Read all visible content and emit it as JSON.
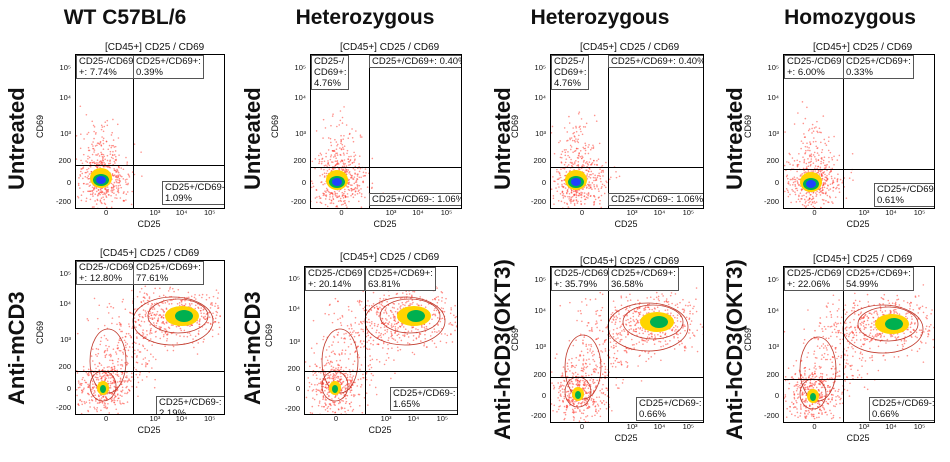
{
  "columns": [
    "WT C57BL/6",
    "Heterozygous",
    "Heterozygous",
    "Homozygous"
  ],
  "row_labels": {
    "top": [
      "Untreated",
      "Untreated",
      "Untreated",
      "Untreated"
    ],
    "bottom": [
      "Anti-mCD3",
      "Anti-mCD3",
      "Anti-hCD3(OKT3)",
      "Anti-hCD3(OKT3)"
    ]
  },
  "colors": {
    "low": "#ff3b30",
    "mid": "#ffd400",
    "high": "#00b050",
    "core": "#1e40ff",
    "contour": "#c0392b"
  },
  "chart_data": [
    {
      "type": "scatter",
      "title": "[CD45+] CD25 / CD69",
      "xlabel": "CD25",
      "ylabel": "CD69",
      "x_ticks": [
        "0",
        "10³",
        "10⁴",
        "10⁵"
      ],
      "y_ticks": [
        "10⁵",
        "10⁴",
        "10³",
        "200",
        "0",
        "-200"
      ],
      "quadrants": {
        "ul": "CD25-/CD69\n+: 7.74%",
        "ur": "CD25+/CD69+:\n0.39%",
        "lr": "CD25+/CD69-:\n1.09%"
      },
      "quadrant_values": {
        "ul": 7.74,
        "ur": 0.39,
        "lr": 1.09
      },
      "population": "untreated"
    },
    {
      "type": "scatter",
      "title": "[CD45+] CD25 / CD69",
      "xlabel": "CD25",
      "ylabel": "CD69",
      "x_ticks": [
        "0",
        "10³",
        "10⁴",
        "10⁵"
      ],
      "y_ticks": [
        "10⁵",
        "10⁴",
        "10³",
        "200",
        "0",
        "-200"
      ],
      "quadrants": {
        "ul": "CD25-/\nCD69+:\n4.76%",
        "ur": "CD25+/CD69+: 0.40%",
        "lr": "CD25+/CD69-: 1.06%"
      },
      "quadrant_values": {
        "ul": 4.76,
        "ur": 0.4,
        "lr": 1.06
      },
      "population": "untreated"
    },
    {
      "type": "scatter",
      "title": "[CD45+] CD25 / CD69",
      "xlabel": "CD25",
      "ylabel": "CD69",
      "x_ticks": [
        "0",
        "10³",
        "10⁴",
        "10⁵"
      ],
      "y_ticks": [
        "10⁵",
        "10⁴",
        "10³",
        "200",
        "0",
        "-200"
      ],
      "quadrants": {
        "ul": "CD25-/\nCD69+:\n4.76%",
        "ur": "CD25+/CD69+: 0.40%",
        "lr": "CD25+/CD69-: 1.06%"
      },
      "quadrant_values": {
        "ul": 4.76,
        "ur": 0.4,
        "lr": 1.06
      },
      "population": "untreated"
    },
    {
      "type": "scatter",
      "title": "[CD45+] CD25 / CD69",
      "xlabel": "CD25",
      "ylabel": "CD69",
      "x_ticks": [
        "0",
        "10³",
        "10⁴",
        "10⁵"
      ],
      "y_ticks": [
        "10⁵",
        "10⁴",
        "10³",
        "200",
        "0",
        "-200"
      ],
      "quadrants": {
        "ul": "CD25-/CD69\n+: 6.00%",
        "ur": "CD25+/CD69+:\n0.33%",
        "lr": "CD25+/CD69-:\n0.61%"
      },
      "quadrant_values": {
        "ul": 6.0,
        "ur": 0.33,
        "lr": 0.61
      },
      "population": "untreated"
    },
    {
      "type": "scatter",
      "title": "[CD45+] CD25 / CD69",
      "xlabel": "CD25",
      "ylabel": "CD69",
      "x_ticks": [
        "0",
        "10³",
        "10⁴",
        "10⁵"
      ],
      "y_ticks": [
        "10⁵",
        "10⁴",
        "10³",
        "200",
        "0",
        "-200"
      ],
      "quadrants": {
        "ul": "CD25-/CD69\n+: 12.80%",
        "ur": "CD25+/CD69+:\n77.61%",
        "lr": "CD25+/CD69-:\n2.19%"
      },
      "quadrant_values": {
        "ul": 12.8,
        "ur": 77.61,
        "lr": 2.19
      },
      "population": "activated"
    },
    {
      "type": "scatter",
      "title": "[CD45+] CD25 / CD69",
      "xlabel": "CD25",
      "ylabel": "CD69",
      "x_ticks": [
        "0",
        "10³",
        "10⁴",
        "10⁵"
      ],
      "y_ticks": [
        "10⁵",
        "10⁴",
        "10³",
        "200",
        "0",
        "-200"
      ],
      "quadrants": {
        "ul": "CD25-/CD69\n+: 20.14%",
        "ur": "CD25+/CD69+:\n63.81%",
        "lr": "CD25+/CD69-:\n1.65%"
      },
      "quadrant_values": {
        "ul": 20.14,
        "ur": 63.81,
        "lr": 1.65
      },
      "population": "activated"
    },
    {
      "type": "scatter",
      "title": "[CD45+] CD25 / CD69",
      "xlabel": "CD25",
      "ylabel": "CD69",
      "x_ticks": [
        "0",
        "10³",
        "10⁴",
        "10⁵"
      ],
      "y_ticks": [
        "10⁵",
        "10⁴",
        "10³",
        "200",
        "0",
        "-200"
      ],
      "quadrants": {
        "ul": "CD25-/CD69\n+: 35.79%",
        "ur": "CD25+/CD69+:\n36.58%",
        "lr": "CD25+/CD69-:\n0.66%"
      },
      "quadrant_values": {
        "ul": 35.79,
        "ur": 36.58,
        "lr": 0.66
      },
      "population": "split"
    },
    {
      "type": "scatter",
      "title": "[CD45+] CD25 / CD69",
      "xlabel": "CD25",
      "ylabel": "CD69",
      "x_ticks": [
        "0",
        "10³",
        "10⁴",
        "10⁵"
      ],
      "y_ticks": [
        "10⁵",
        "10⁴",
        "10³",
        "200",
        "0",
        "-200"
      ],
      "quadrants": {
        "ul": "CD25-/CD69\n+: 22.06%",
        "ur": "CD25+/CD69+:\n54.99%",
        "lr": "CD25+/CD69-:\n0.66%"
      },
      "quadrant_values": {
        "ul": 22.06,
        "ur": 54.99,
        "lr": 0.66
      },
      "population": "activated"
    }
  ]
}
